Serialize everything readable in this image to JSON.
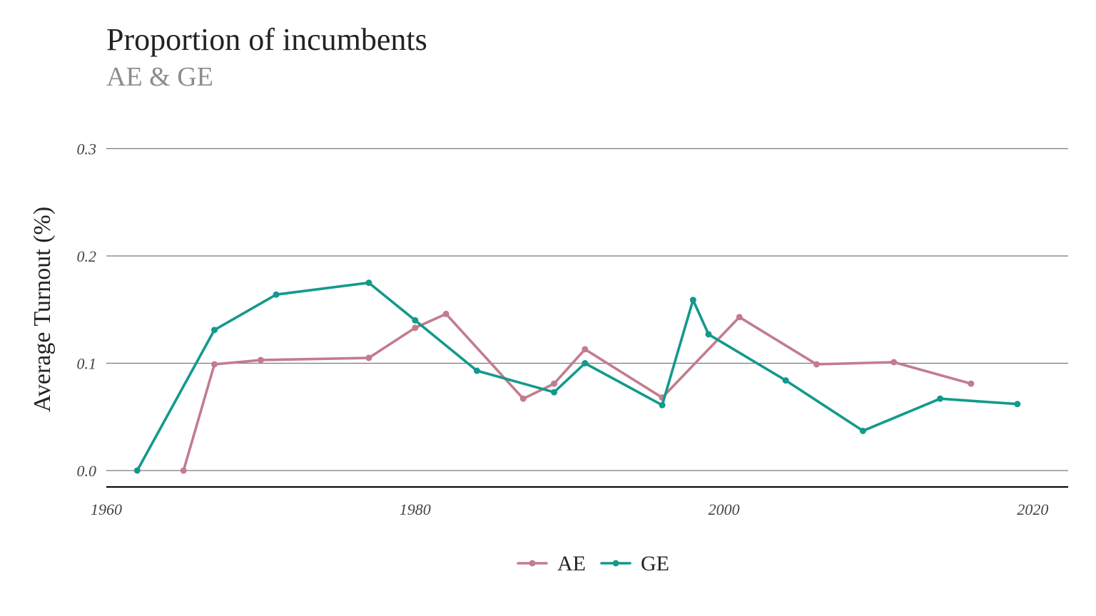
{
  "title": "Proportion of incumbents",
  "subtitle": "AE & GE",
  "chart_data": {
    "type": "line",
    "title": "Proportion of incumbents",
    "subtitle": "AE & GE",
    "xlabel": "",
    "ylabel": "Average Turnout (%)",
    "xlim": [
      1960,
      2021
    ],
    "ylim": [
      0,
      0.3
    ],
    "x_ticks": [
      "1960",
      "1980",
      "2000",
      "2020"
    ],
    "x_tick_values": [
      1960,
      1980,
      2000,
      2020
    ],
    "y_ticks": [
      "0.0",
      "0.1",
      "0.2",
      "0.3"
    ],
    "y_tick_values": [
      0,
      0.1,
      0.2,
      0.3
    ],
    "grid": "horizontal",
    "legend_position": "bottom",
    "series": [
      {
        "name": "AE",
        "color": "#c27c8e",
        "x": [
          1965,
          1967,
          1970,
          1977,
          1980,
          1982,
          1987,
          1989,
          1991,
          1996,
          2001,
          2006,
          2011,
          2016
        ],
        "y": [
          0.0,
          0.099,
          0.103,
          0.105,
          0.133,
          0.146,
          0.067,
          0.081,
          0.113,
          0.068,
          0.143,
          0.099,
          0.101,
          0.081
        ]
      },
      {
        "name": "GE",
        "color": "#13998c",
        "x": [
          1962,
          1967,
          1971,
          1977,
          1980,
          1984,
          1989,
          1991,
          1996,
          1998,
          1999,
          2004,
          2009,
          2014,
          2019
        ],
        "y": [
          0.0,
          0.131,
          0.164,
          0.175,
          0.14,
          0.093,
          0.073,
          0.1,
          0.061,
          0.159,
          0.127,
          0.084,
          0.037,
          0.067,
          0.062
        ]
      }
    ]
  }
}
